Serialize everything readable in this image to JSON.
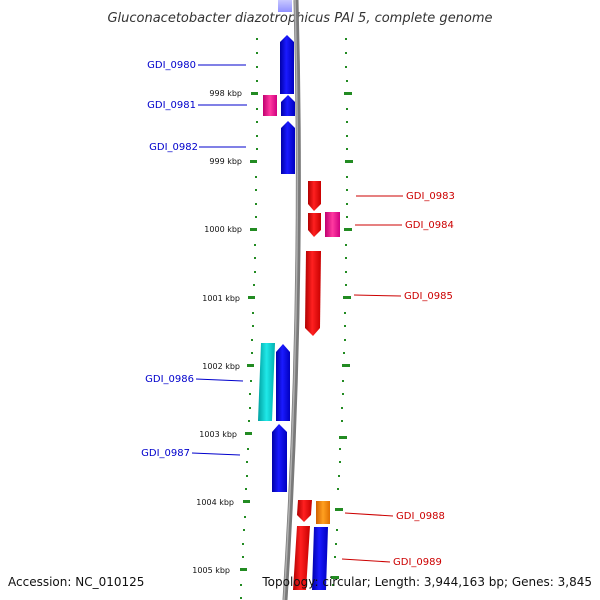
{
  "title": "Gluconacetobacter diazotrophicus PAl 5, complete genome",
  "footer": {
    "accession": "Accession: NC_010125",
    "topology": "Topology: circular; Length: 3,944,163 bp; Genes: 3,845"
  },
  "ticks": [
    "998 kbp",
    "999 kbp",
    "1000 kbp",
    "1001 kbp",
    "1002 kbp",
    "1003 kbp",
    "1004 kbp",
    "1005 kbp"
  ],
  "genes_left": [
    "GDI_0980",
    "GDI_0981",
    "GDI_0982",
    "GDI_0986",
    "GDI_0987"
  ],
  "genes_right": [
    "GDI_0983",
    "GDI_0984",
    "GDI_0985",
    "GDI_0988",
    "GDI_0989"
  ],
  "colors": {
    "forward_cds": "#0000ff",
    "reverse_cds": "#ff0000",
    "magenta_feature": "#ff1493",
    "cyan_feature": "#00cccc",
    "orange_feature": "#ff8c00",
    "backbone": "#888888",
    "tick_marks": "#228b22"
  }
}
